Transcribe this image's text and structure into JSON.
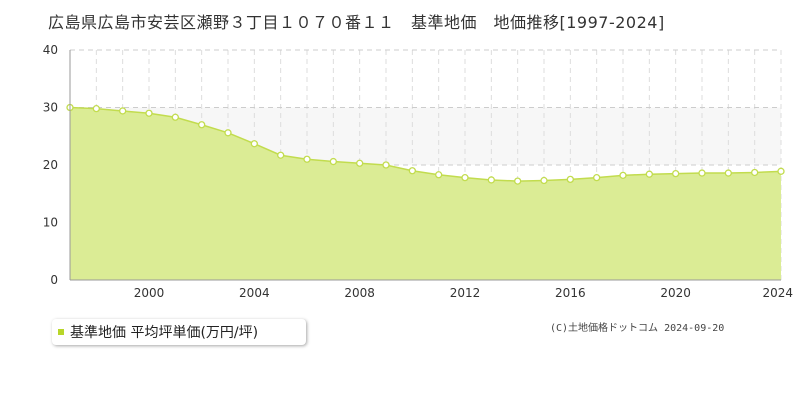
{
  "title": "広島県広島市安芸区瀬野３丁目１０７０番１１　基準地価　地価推移[1997-2024]",
  "colors": {
    "area_fill": "#dbec95",
    "area_line": "#c2dc4e",
    "point_stroke": "#c2dc4e",
    "legend_swatch": "#b8d629",
    "grid_major": "#cccccc",
    "grid_minor": "#dddddd",
    "band": "#f7f7f7"
  },
  "legend": {
    "label": "基準地価 平均坪単価(万円/坪)"
  },
  "copyright": "(C)土地価格ドットコム 2024-09-20",
  "chart_data": {
    "type": "area",
    "title": "広島県広島市安芸区瀬野３丁目１０７０番１１　基準地価　地価推移[1997-2024]",
    "xlabel": "",
    "ylabel": "",
    "xlim": [
      1997,
      2024
    ],
    "ylim": [
      0,
      40
    ],
    "y_ticks": [
      0,
      10,
      20,
      30,
      40
    ],
    "x_tick_labels": [
      2000,
      2004,
      2008,
      2012,
      2016,
      2020,
      2024
    ],
    "grid": true,
    "legend_position": "bottom-left",
    "series": [
      {
        "name": "基準地価 平均坪単価(万円/坪)",
        "x": [
          1997,
          1998,
          1999,
          2000,
          2001,
          2002,
          2003,
          2004,
          2005,
          2006,
          2007,
          2008,
          2009,
          2010,
          2011,
          2012,
          2013,
          2014,
          2015,
          2016,
          2017,
          2018,
          2019,
          2020,
          2021,
          2022,
          2023,
          2024
        ],
        "values": [
          30.0,
          29.8,
          29.4,
          29.0,
          28.3,
          27.0,
          25.6,
          23.7,
          21.7,
          21.0,
          20.6,
          20.3,
          20.0,
          19.0,
          18.3,
          17.8,
          17.4,
          17.2,
          17.3,
          17.5,
          17.8,
          18.2,
          18.4,
          18.5,
          18.6,
          18.6,
          18.7,
          18.9
        ]
      }
    ]
  }
}
